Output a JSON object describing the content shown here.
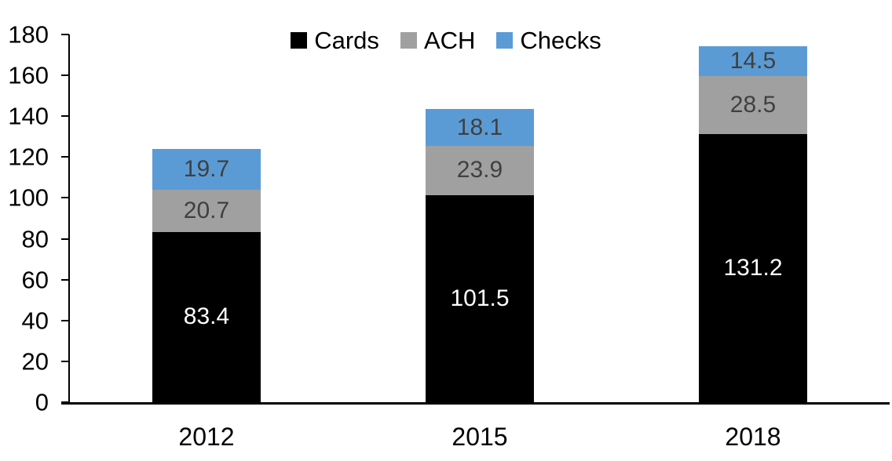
{
  "chart_data": {
    "type": "bar",
    "stacked": true,
    "title": "",
    "xlabel": "",
    "ylabel": "",
    "categories": [
      "2012",
      "2015",
      "2018"
    ],
    "series": [
      {
        "name": "Cards",
        "values": [
          83.4,
          101.5,
          131.2
        ],
        "color": "#000000",
        "label_color": "#ffffff"
      },
      {
        "name": "ACH",
        "values": [
          20.7,
          23.9,
          28.5
        ],
        "color": "#A0A0A0",
        "label_color": "#404040"
      },
      {
        "name": "Checks",
        "values": [
          19.7,
          18.1,
          14.5
        ],
        "color": "#5B9BD5",
        "label_color": "#404040"
      }
    ],
    "data_labels": [
      [
        "83.4",
        "101.5",
        "131.2"
      ],
      [
        "20.7",
        "23.9",
        "28.5"
      ],
      [
        "19.7",
        "18.1",
        "14.5"
      ]
    ],
    "ylim": [
      0,
      180
    ],
    "yticks": [
      "0",
      "20",
      "40",
      "60",
      "80",
      "100",
      "120",
      "140",
      "160",
      "180"
    ],
    "grid": false,
    "legend_position": "top",
    "axis_color": "#000000",
    "background_color": "#ffffff"
  }
}
